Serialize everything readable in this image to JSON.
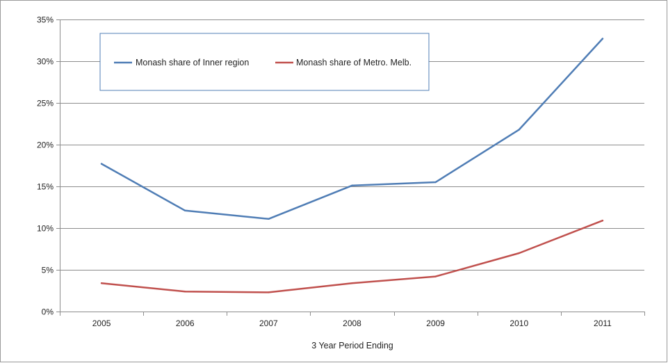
{
  "chart_data": {
    "type": "line",
    "title": "",
    "xlabel": "3 Year Period Ending",
    "ylabel": "",
    "x": [
      "2005",
      "2006",
      "2007",
      "2008",
      "2009",
      "2010",
      "2011"
    ],
    "ylim": [
      0,
      35
    ],
    "yticks": [
      0,
      5,
      10,
      15,
      20,
      25,
      30,
      35
    ],
    "ytick_labels": [
      "0%",
      "5%",
      "10%",
      "15%",
      "20%",
      "25%",
      "30%",
      "35%"
    ],
    "grid": true,
    "legend_position": "top-left inside plot",
    "series": [
      {
        "name": "Monash share of Inner region",
        "color": "#4f7db5",
        "values": [
          17.7,
          12.1,
          11.1,
          15.1,
          15.5,
          21.8,
          32.7
        ]
      },
      {
        "name": "Monash share of Metro. Melb.",
        "color": "#c0504d",
        "values": [
          3.4,
          2.4,
          2.3,
          3.4,
          4.2,
          7.0,
          10.9
        ]
      }
    ]
  }
}
